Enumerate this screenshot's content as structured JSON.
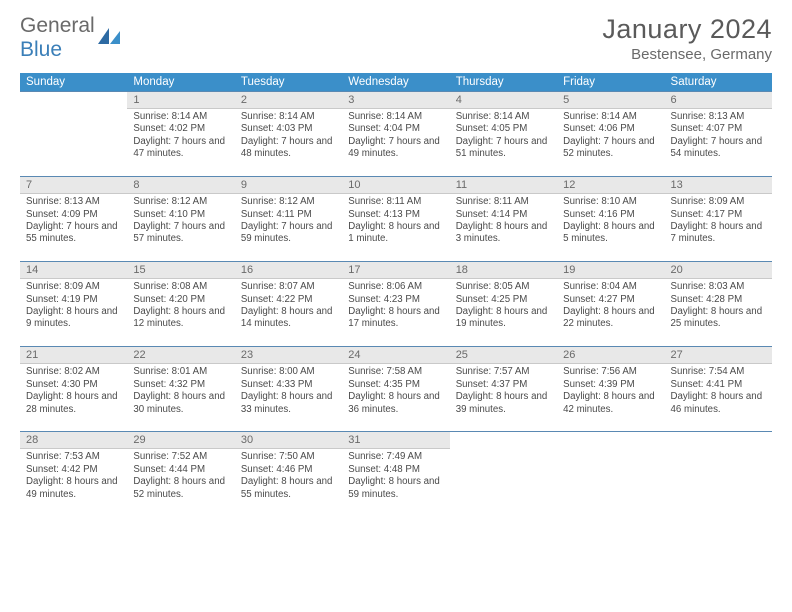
{
  "brand": {
    "part1": "General",
    "part2": "Blue"
  },
  "title": "January 2024",
  "location": "Bestensee, Germany",
  "weekdays": [
    "Sunday",
    "Monday",
    "Tuesday",
    "Wednesday",
    "Thursday",
    "Friday",
    "Saturday"
  ],
  "colors": {
    "header_bg": "#3b8fc9",
    "header_fg": "#ffffff",
    "daynum_bg": "#e8e8e8",
    "daynum_border_top": "#5a89b3",
    "text": "#4a4a4a",
    "logo_blue": "#3b7fb8",
    "title_color": "#5a5a5a"
  },
  "layout": {
    "cols": 7,
    "rows": 5,
    "first_weekday_offset": 1
  },
  "days": [
    {
      "n": 1,
      "sunrise": "8:14 AM",
      "sunset": "4:02 PM",
      "daylight": "7 hours and 47 minutes."
    },
    {
      "n": 2,
      "sunrise": "8:14 AM",
      "sunset": "4:03 PM",
      "daylight": "7 hours and 48 minutes."
    },
    {
      "n": 3,
      "sunrise": "8:14 AM",
      "sunset": "4:04 PM",
      "daylight": "7 hours and 49 minutes."
    },
    {
      "n": 4,
      "sunrise": "8:14 AM",
      "sunset": "4:05 PM",
      "daylight": "7 hours and 51 minutes."
    },
    {
      "n": 5,
      "sunrise": "8:14 AM",
      "sunset": "4:06 PM",
      "daylight": "7 hours and 52 minutes."
    },
    {
      "n": 6,
      "sunrise": "8:13 AM",
      "sunset": "4:07 PM",
      "daylight": "7 hours and 54 minutes."
    },
    {
      "n": 7,
      "sunrise": "8:13 AM",
      "sunset": "4:09 PM",
      "daylight": "7 hours and 55 minutes."
    },
    {
      "n": 8,
      "sunrise": "8:12 AM",
      "sunset": "4:10 PM",
      "daylight": "7 hours and 57 minutes."
    },
    {
      "n": 9,
      "sunrise": "8:12 AM",
      "sunset": "4:11 PM",
      "daylight": "7 hours and 59 minutes."
    },
    {
      "n": 10,
      "sunrise": "8:11 AM",
      "sunset": "4:13 PM",
      "daylight": "8 hours and 1 minute."
    },
    {
      "n": 11,
      "sunrise": "8:11 AM",
      "sunset": "4:14 PM",
      "daylight": "8 hours and 3 minutes."
    },
    {
      "n": 12,
      "sunrise": "8:10 AM",
      "sunset": "4:16 PM",
      "daylight": "8 hours and 5 minutes."
    },
    {
      "n": 13,
      "sunrise": "8:09 AM",
      "sunset": "4:17 PM",
      "daylight": "8 hours and 7 minutes."
    },
    {
      "n": 14,
      "sunrise": "8:09 AM",
      "sunset": "4:19 PM",
      "daylight": "8 hours and 9 minutes."
    },
    {
      "n": 15,
      "sunrise": "8:08 AM",
      "sunset": "4:20 PM",
      "daylight": "8 hours and 12 minutes."
    },
    {
      "n": 16,
      "sunrise": "8:07 AM",
      "sunset": "4:22 PM",
      "daylight": "8 hours and 14 minutes."
    },
    {
      "n": 17,
      "sunrise": "8:06 AM",
      "sunset": "4:23 PM",
      "daylight": "8 hours and 17 minutes."
    },
    {
      "n": 18,
      "sunrise": "8:05 AM",
      "sunset": "4:25 PM",
      "daylight": "8 hours and 19 minutes."
    },
    {
      "n": 19,
      "sunrise": "8:04 AM",
      "sunset": "4:27 PM",
      "daylight": "8 hours and 22 minutes."
    },
    {
      "n": 20,
      "sunrise": "8:03 AM",
      "sunset": "4:28 PM",
      "daylight": "8 hours and 25 minutes."
    },
    {
      "n": 21,
      "sunrise": "8:02 AM",
      "sunset": "4:30 PM",
      "daylight": "8 hours and 28 minutes."
    },
    {
      "n": 22,
      "sunrise": "8:01 AM",
      "sunset": "4:32 PM",
      "daylight": "8 hours and 30 minutes."
    },
    {
      "n": 23,
      "sunrise": "8:00 AM",
      "sunset": "4:33 PM",
      "daylight": "8 hours and 33 minutes."
    },
    {
      "n": 24,
      "sunrise": "7:58 AM",
      "sunset": "4:35 PM",
      "daylight": "8 hours and 36 minutes."
    },
    {
      "n": 25,
      "sunrise": "7:57 AM",
      "sunset": "4:37 PM",
      "daylight": "8 hours and 39 minutes."
    },
    {
      "n": 26,
      "sunrise": "7:56 AM",
      "sunset": "4:39 PM",
      "daylight": "8 hours and 42 minutes."
    },
    {
      "n": 27,
      "sunrise": "7:54 AM",
      "sunset": "4:41 PM",
      "daylight": "8 hours and 46 minutes."
    },
    {
      "n": 28,
      "sunrise": "7:53 AM",
      "sunset": "4:42 PM",
      "daylight": "8 hours and 49 minutes."
    },
    {
      "n": 29,
      "sunrise": "7:52 AM",
      "sunset": "4:44 PM",
      "daylight": "8 hours and 52 minutes."
    },
    {
      "n": 30,
      "sunrise": "7:50 AM",
      "sunset": "4:46 PM",
      "daylight": "8 hours and 55 minutes."
    },
    {
      "n": 31,
      "sunrise": "7:49 AM",
      "sunset": "4:48 PM",
      "daylight": "8 hours and 59 minutes."
    }
  ],
  "labels": {
    "sunrise": "Sunrise:",
    "sunset": "Sunset:",
    "daylight": "Daylight:"
  }
}
